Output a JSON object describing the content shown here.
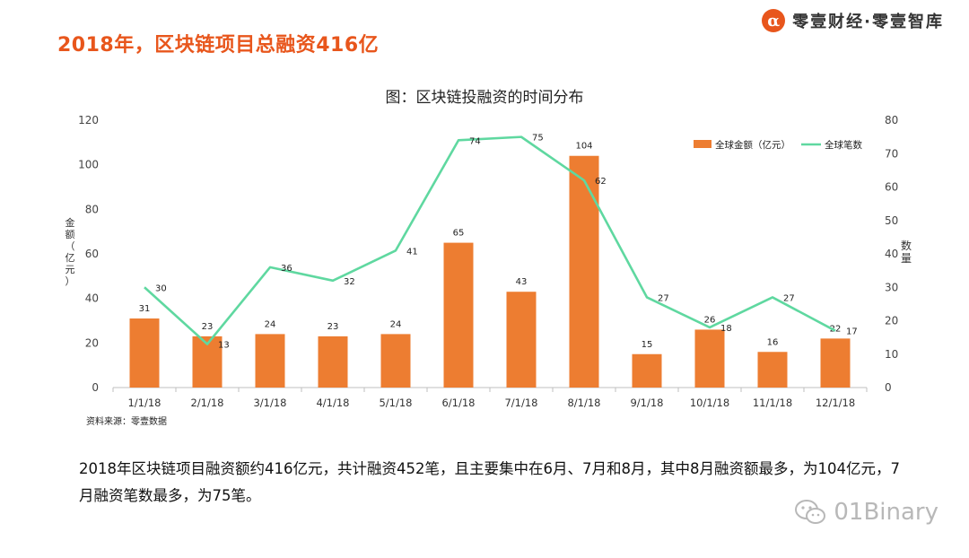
{
  "header": {
    "headline": "2018年，区块链项目总融资416亿",
    "brand_logo": "α",
    "brand_text": "零壹财经·零壹智库",
    "brand_color": "#e8561c"
  },
  "chart_data": {
    "type": "bar+line",
    "title": "图：区块链投融资的时间分布",
    "categories": [
      "1/1/18",
      "2/1/18",
      "3/1/18",
      "4/1/18",
      "5/1/18",
      "6/1/18",
      "7/1/18",
      "8/1/18",
      "9/1/18",
      "10/1/18",
      "11/1/18",
      "12/1/18"
    ],
    "series": [
      {
        "name": "全球金额（亿元）",
        "kind": "bar",
        "axis": "left",
        "color": "#ed7d31",
        "values": [
          31,
          23,
          24,
          23,
          24,
          65,
          43,
          104,
          15,
          26,
          16,
          22
        ]
      },
      {
        "name": "全球笔数",
        "kind": "line",
        "axis": "right",
        "color": "#5fd8a0",
        "values": [
          30,
          13,
          36,
          32,
          41,
          74,
          75,
          62,
          27,
          18,
          27,
          17
        ]
      }
    ],
    "ylabel_left": "金额（亿元）",
    "ylabel_right": "数量",
    "ylim_left": [
      0,
      120
    ],
    "yticks_left": [
      0,
      20,
      40,
      60,
      80,
      100,
      120
    ],
    "ylim_right": [
      0,
      80
    ],
    "yticks_right": [
      0,
      10,
      20,
      30,
      40,
      50,
      60,
      70,
      80
    ],
    "grid": false,
    "legend": "top-right"
  },
  "source": "资料来源：零壹数据",
  "body_text": "2018年区块链项目融资额约416亿元，共计融资452笔，且主要集中在6月、7月和8月，其中8月融资额最多，为104亿元，7月融资笔数最多，为75笔。",
  "watermark": "01Binary"
}
